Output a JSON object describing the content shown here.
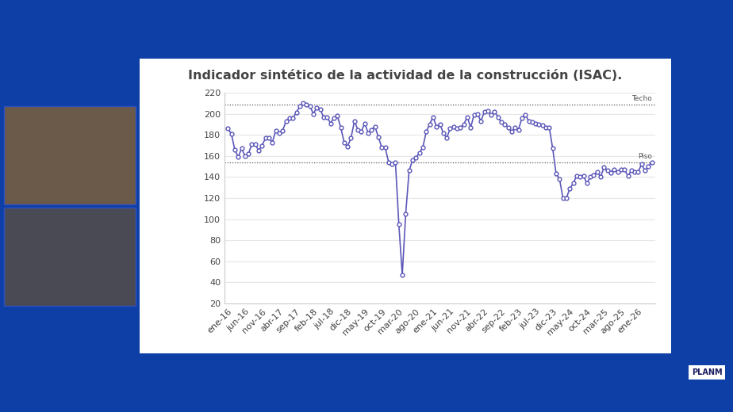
{
  "chart_data": {
    "type": "line",
    "title": "Indicador sintético de la actividad de la construcción (ISAC).",
    "source": "PLANM",
    "categories": [
      "ene-16",
      null,
      null,
      null,
      null,
      "jun-16",
      null,
      null,
      null,
      null,
      "nov-16",
      null,
      null,
      null,
      null,
      "abr-17",
      null,
      null,
      null,
      null,
      "sep-17",
      null,
      null,
      null,
      null,
      "feb-18",
      null,
      null,
      null,
      null,
      "jul-18",
      null,
      null,
      null,
      null,
      "dic-18",
      null,
      null,
      null,
      null,
      "may-19",
      null,
      null,
      null,
      null,
      "oct-19",
      null,
      null,
      null,
      null,
      "mar-20",
      null,
      null,
      null,
      null,
      "ago-20",
      null,
      null,
      null,
      null,
      "ene-21",
      null,
      null,
      null,
      null,
      "jun-21",
      null,
      null,
      null,
      null,
      "nov-21",
      null,
      null,
      null,
      null,
      "abr-22",
      null,
      null,
      null,
      null,
      "sep-22",
      null,
      null,
      null,
      null,
      "feb-23",
      null,
      null,
      null,
      null,
      "jul-23",
      null,
      null,
      null,
      null,
      "dic-23",
      null,
      null,
      null,
      null,
      "may-24",
      null,
      null,
      null,
      null,
      "oct-24",
      null,
      null,
      null,
      null,
      "mar-25",
      null,
      null,
      null,
      null,
      "ago-25",
      null,
      null,
      null,
      null,
      "ene-26",
      null,
      null,
      null,
      null
    ],
    "values": [
      186,
      181,
      166,
      159,
      167,
      160,
      162,
      171,
      171,
      165,
      170,
      177,
      177,
      173,
      184,
      182,
      184,
      193,
      196,
      196,
      201,
      207,
      210,
      209,
      207,
      200,
      206,
      204,
      197,
      197,
      191,
      196,
      198,
      187,
      173,
      169,
      177,
      193,
      185,
      183,
      191,
      182,
      185,
      188,
      178,
      168,
      168,
      154,
      152,
      154,
      95,
      47,
      105,
      146,
      156,
      158,
      163,
      168,
      183,
      190,
      197,
      188,
      190,
      182,
      177,
      186,
      188,
      186,
      187,
      190,
      197,
      187,
      199,
      200,
      193,
      202,
      203,
      199,
      202,
      197,
      192,
      190,
      187,
      183,
      187,
      185,
      196,
      199,
      193,
      192,
      191,
      190,
      189,
      187,
      187,
      167,
      143,
      138,
      120,
      120,
      129,
      134,
      141,
      140,
      141,
      134,
      140,
      142,
      145,
      140,
      149,
      146,
      144,
      147,
      145,
      147,
      147,
      141,
      146,
      145,
      145,
      152,
      146,
      150,
      154
    ],
    "color": "#5b57b8",
    "marker": "o",
    "ylim": [
      20,
      220
    ],
    "yticks": [
      20,
      40,
      60,
      80,
      100,
      120,
      140,
      160,
      180,
      200,
      220
    ],
    "grid": true,
    "reference_lines": [
      {
        "label": "Techo",
        "value": 209
      },
      {
        "label": "Piso",
        "value": 154
      }
    ]
  }
}
